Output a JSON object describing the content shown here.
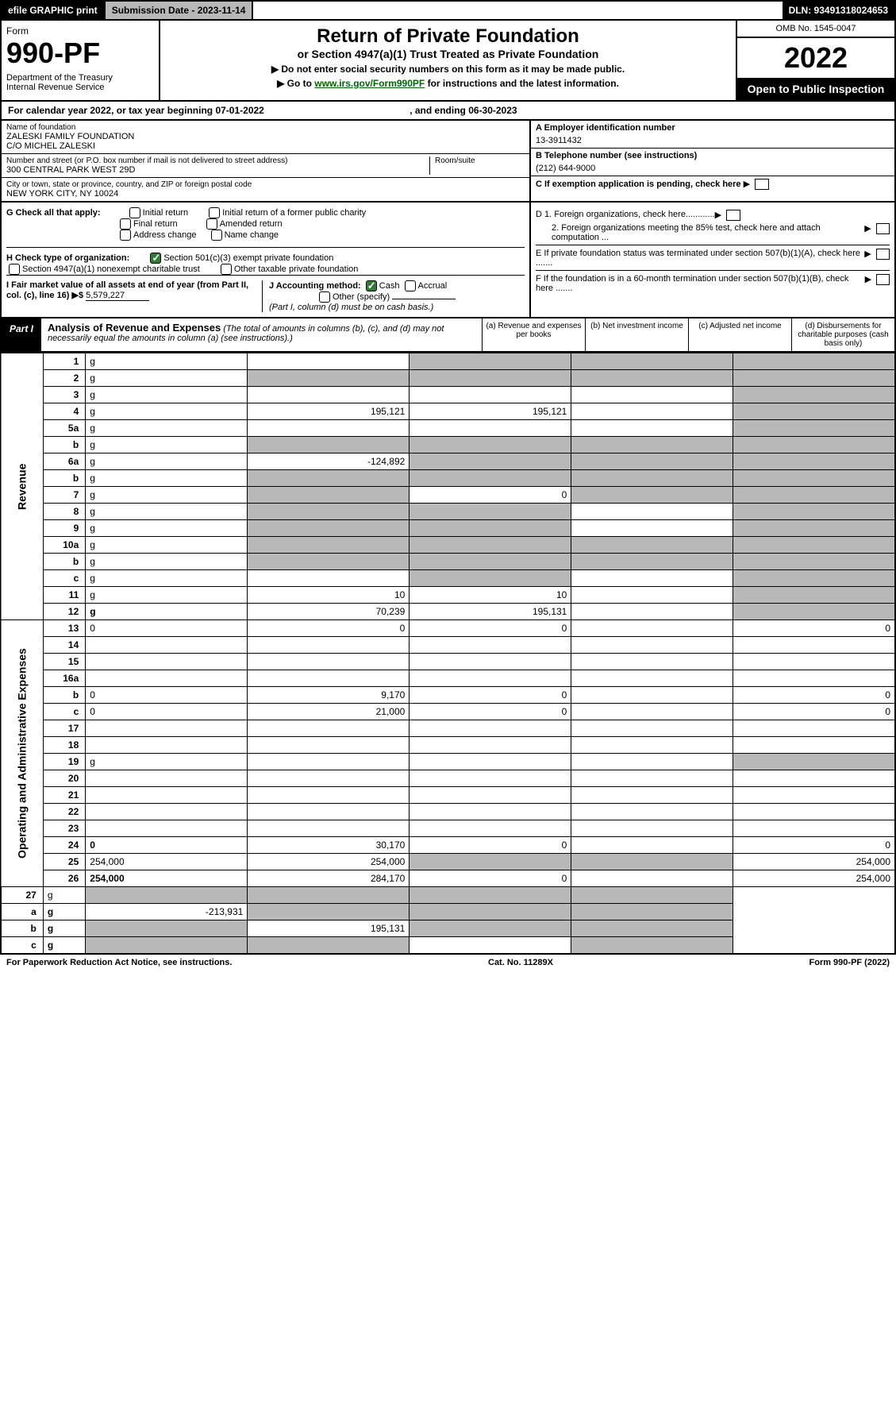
{
  "topbar": {
    "efile": "efile GRAPHIC print",
    "subdate_lbl": "Submission Date - 2023-11-14",
    "dln": "DLN: 93491318024653"
  },
  "header": {
    "form_word": "Form",
    "form_num": "990-PF",
    "dept": "Department of the Treasury\nInternal Revenue Service",
    "title": "Return of Private Foundation",
    "subtitle": "or Section 4947(a)(1) Trust Treated as Private Foundation",
    "note1": "▶ Do not enter social security numbers on this form as it may be made public.",
    "note2_pre": "▶ Go to ",
    "note2_link": "www.irs.gov/Form990PF",
    "note2_post": " for instructions and the latest information.",
    "omb": "OMB No. 1545-0047",
    "year": "2022",
    "open": "Open to Public Inspection"
  },
  "calendar": {
    "text_pre": "For calendar year 2022, or tax year beginning ",
    "begin": "07-01-2022",
    "text_mid": " , and ending ",
    "end": "06-30-2023"
  },
  "entity": {
    "name_lbl": "Name of foundation",
    "name": "ZALESKI FAMILY FOUNDATION\nC/O MICHEL ZALESKI",
    "addr_lbl": "Number and street (or P.O. box number if mail is not delivered to street address)",
    "addr": "300 CENTRAL PARK WEST 29D",
    "room_lbl": "Room/suite",
    "city_lbl": "City or town, state or province, country, and ZIP or foreign postal code",
    "city": "NEW YORK CITY, NY  10024",
    "a_lbl": "A Employer identification number",
    "a_val": "13-3911432",
    "b_lbl": "B Telephone number (see instructions)",
    "b_val": "(212) 644-9000",
    "c_lbl": "C If exemption application is pending, check here"
  },
  "checks": {
    "g_lbl": "G Check all that apply:",
    "g_opts": [
      "Initial return",
      "Initial return of a former public charity",
      "Final return",
      "Amended return",
      "Address change",
      "Name change"
    ],
    "h_lbl": "H Check type of organization:",
    "h_opt1": "Section 501(c)(3) exempt private foundation",
    "h_opt2": "Section 4947(a)(1) nonexempt charitable trust",
    "h_opt3": "Other taxable private foundation",
    "i_lbl": "I Fair market value of all assets at end of year (from Part II, col. (c), line 16) ▶$",
    "i_val": "5,579,227",
    "j_lbl": "J Accounting method:",
    "j_cash": "Cash",
    "j_accrual": "Accrual",
    "j_other": "Other (specify)",
    "j_note": "(Part I, column (d) must be on cash basis.)",
    "d1": "D 1. Foreign organizations, check here............",
    "d2": "2. Foreign organizations meeting the 85% test, check here and attach computation ...",
    "e": "E If private foundation status was terminated under section 507(b)(1)(A), check here .......",
    "f": "F If the foundation is in a 60-month termination under section 507(b)(1)(B), check here ......."
  },
  "part1": {
    "label": "Part I",
    "title": "Analysis of Revenue and Expenses",
    "title_note": "(The total of amounts in columns (b), (c), and (d) may not necessarily equal the amounts in column (a) (see instructions).)",
    "col_a": "(a) Revenue and expenses per books",
    "col_b": "(b) Net investment income",
    "col_c": "(c) Adjusted net income",
    "col_d": "(d) Disbursements for charitable purposes (cash basis only)"
  },
  "sections": {
    "revenue": "Revenue",
    "opex": "Operating and Administrative Expenses"
  },
  "rows": [
    {
      "n": "1",
      "d": "g",
      "a": "",
      "b": "g",
      "c": "g"
    },
    {
      "n": "2",
      "d": "g",
      "a": "g",
      "b": "g",
      "c": "g"
    },
    {
      "n": "3",
      "d": "g",
      "a": "",
      "b": "",
      "c": ""
    },
    {
      "n": "4",
      "d": "g",
      "a": "195,121",
      "b": "195,121",
      "c": ""
    },
    {
      "n": "5a",
      "d": "g",
      "a": "",
      "b": "",
      "c": ""
    },
    {
      "n": "b",
      "d": "g",
      "a": "g",
      "b": "g",
      "c": "g"
    },
    {
      "n": "6a",
      "d": "g",
      "a": "-124,892",
      "b": "g",
      "c": "g"
    },
    {
      "n": "b",
      "d": "g",
      "a": "g",
      "b": "g",
      "c": "g"
    },
    {
      "n": "7",
      "d": "g",
      "a": "g",
      "b": "0",
      "c": "g"
    },
    {
      "n": "8",
      "d": "g",
      "a": "g",
      "b": "g",
      "c": ""
    },
    {
      "n": "9",
      "d": "g",
      "a": "g",
      "b": "g",
      "c": ""
    },
    {
      "n": "10a",
      "d": "g",
      "a": "g",
      "b": "g",
      "c": "g"
    },
    {
      "n": "b",
      "d": "g",
      "a": "g",
      "b": "g",
      "c": "g"
    },
    {
      "n": "c",
      "d": "g",
      "a": "",
      "b": "g",
      "c": ""
    },
    {
      "n": "11",
      "d": "g",
      "a": "10",
      "b": "10",
      "c": ""
    },
    {
      "n": "12",
      "d": "g",
      "a": "70,239",
      "b": "195,131",
      "c": "",
      "bold": true
    }
  ],
  "exp_rows": [
    {
      "n": "13",
      "d": "0",
      "a": "0",
      "b": "0",
      "c": ""
    },
    {
      "n": "14",
      "d": "",
      "a": "",
      "b": "",
      "c": ""
    },
    {
      "n": "15",
      "d": "",
      "a": "",
      "b": "",
      "c": ""
    },
    {
      "n": "16a",
      "d": "",
      "a": "",
      "b": "",
      "c": ""
    },
    {
      "n": "b",
      "d": "0",
      "a": "9,170",
      "b": "0",
      "c": ""
    },
    {
      "n": "c",
      "d": "0",
      "a": "21,000",
      "b": "0",
      "c": ""
    },
    {
      "n": "17",
      "d": "",
      "a": "",
      "b": "",
      "c": ""
    },
    {
      "n": "18",
      "d": "",
      "a": "",
      "b": "",
      "c": ""
    },
    {
      "n": "19",
      "d": "g",
      "a": "",
      "b": "",
      "c": ""
    },
    {
      "n": "20",
      "d": "",
      "a": "",
      "b": "",
      "c": ""
    },
    {
      "n": "21",
      "d": "",
      "a": "",
      "b": "",
      "c": ""
    },
    {
      "n": "22",
      "d": "",
      "a": "",
      "b": "",
      "c": ""
    },
    {
      "n": "23",
      "d": "",
      "a": "",
      "b": "",
      "c": ""
    },
    {
      "n": "24",
      "d": "0",
      "a": "30,170",
      "b": "0",
      "c": "",
      "bold": true
    },
    {
      "n": "25",
      "d": "254,000",
      "a": "254,000",
      "b": "g",
      "c": "g"
    },
    {
      "n": "26",
      "d": "254,000",
      "a": "284,170",
      "b": "0",
      "c": "",
      "bold": true
    }
  ],
  "net_rows": [
    {
      "n": "27",
      "d": "g",
      "a": "g",
      "b": "g",
      "c": "g"
    },
    {
      "n": "a",
      "d": "g",
      "a": "-213,931",
      "b": "g",
      "c": "g",
      "bold": true
    },
    {
      "n": "b",
      "d": "g",
      "a": "g",
      "b": "195,131",
      "c": "g",
      "bold": true
    },
    {
      "n": "c",
      "d": "g",
      "a": "g",
      "b": "g",
      "c": "",
      "bold": true
    }
  ],
  "footer": {
    "left": "For Paperwork Reduction Act Notice, see instructions.",
    "mid": "Cat. No. 11289X",
    "right": "Form 990-PF (2022)"
  }
}
